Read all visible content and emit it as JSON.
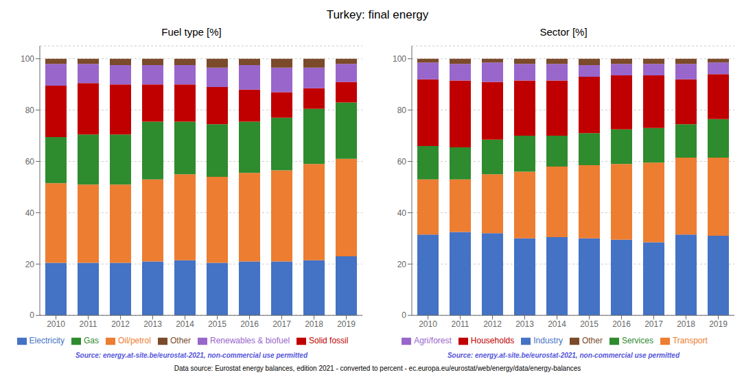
{
  "title": "Turkey: final energy",
  "annotations": [
    "Data source: Eurostat energy balances, edition 2021 - converted to percent - ec.europa.eu/eurostat/web/energy/data/energy-balances"
  ],
  "chart_data": [
    {
      "type": "bar",
      "title": "Fuel type [%]",
      "stacked": true,
      "grid": true,
      "legend": "bottom",
      "categories": [
        "2010",
        "2011",
        "2012",
        "2013",
        "2014",
        "2015",
        "2016",
        "2017",
        "2018",
        "2019"
      ],
      "ylim": [
        0,
        105
      ],
      "yticks": [
        0,
        20,
        40,
        60,
        80,
        100
      ],
      "annotations": [
        "Source: energy.at-site.be/eurostat-2021, non-commercial use permitted"
      ],
      "series": [
        {
          "name": "Electricity",
          "color": "#4472c4",
          "values": [
            20.5,
            20.5,
            20.5,
            21.0,
            21.5,
            20.5,
            21.0,
            21.0,
            21.5,
            23.0
          ]
        },
        {
          "name": "Oil/petrol",
          "color": "#ed7d31",
          "values": [
            31.0,
            30.5,
            30.5,
            32.0,
            33.5,
            33.5,
            34.5,
            35.5,
            37.5,
            38.0
          ]
        },
        {
          "name": "Gas",
          "color": "#2e8b2e",
          "values": [
            18.0,
            19.5,
            19.5,
            22.5,
            20.5,
            20.5,
            20.0,
            20.5,
            21.5,
            22.0
          ]
        },
        {
          "name": "Solid fossil",
          "color": "#c00000",
          "values": [
            20.0,
            20.0,
            19.5,
            14.5,
            14.5,
            14.5,
            12.5,
            10.0,
            8.0,
            8.0
          ]
        },
        {
          "name": "Renewables & biofuel",
          "color": "#9966cc",
          "values": [
            8.5,
            7.5,
            7.5,
            7.5,
            7.5,
            7.5,
            9.5,
            9.5,
            8.0,
            7.0
          ]
        },
        {
          "name": "Other",
          "color": "#7b4a2a",
          "values": [
            2.0,
            2.0,
            2.5,
            2.5,
            2.5,
            3.5,
            2.5,
            3.5,
            3.5,
            2.0
          ]
        }
      ]
    },
    {
      "type": "bar",
      "title": "Sector [%]",
      "stacked": true,
      "grid": true,
      "legend": "bottom",
      "categories": [
        "2010",
        "2011",
        "2012",
        "2013",
        "2014",
        "2015",
        "2016",
        "2017",
        "2018",
        "2019"
      ],
      "ylim": [
        0,
        105
      ],
      "yticks": [
        0,
        20,
        40,
        60,
        80,
        100
      ],
      "annotations": [
        "Source: energy.at-site.be/eurostat-2021, non-commercial use permitted"
      ],
      "series": [
        {
          "name": "Industry",
          "color": "#4472c4",
          "values": [
            31.5,
            32.5,
            32.0,
            30.0,
            30.5,
            30.0,
            29.5,
            28.5,
            31.5,
            31.0
          ]
        },
        {
          "name": "Transport",
          "color": "#ed7d31",
          "values": [
            21.5,
            20.5,
            23.0,
            26.0,
            27.5,
            28.5,
            29.5,
            31.0,
            30.0,
            30.5
          ]
        },
        {
          "name": "Services",
          "color": "#2e8b2e",
          "values": [
            13.0,
            12.5,
            13.5,
            14.0,
            12.0,
            12.5,
            13.5,
            13.5,
            13.0,
            15.0
          ]
        },
        {
          "name": "Households",
          "color": "#c00000",
          "values": [
            26.0,
            26.0,
            22.5,
            21.5,
            21.5,
            22.0,
            21.0,
            20.5,
            17.5,
            17.5
          ]
        },
        {
          "name": "Agri/forest",
          "color": "#9966cc",
          "values": [
            6.5,
            6.5,
            7.5,
            6.5,
            6.5,
            4.5,
            4.5,
            4.5,
            6.0,
            4.5
          ]
        },
        {
          "name": "Other",
          "color": "#7b4a2a",
          "values": [
            1.5,
            2.0,
            1.5,
            2.0,
            2.0,
            2.5,
            2.0,
            2.0,
            2.0,
            1.5
          ]
        }
      ]
    }
  ]
}
